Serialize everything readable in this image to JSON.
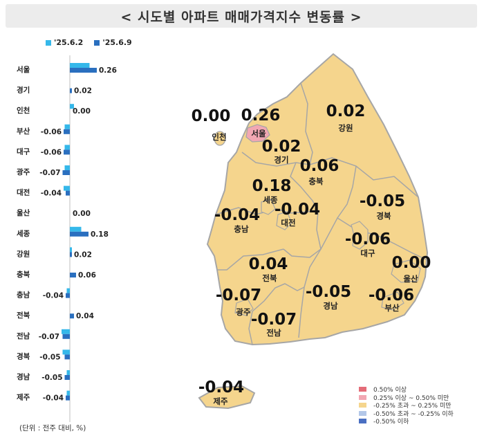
{
  "title": "< 시도별 아파트 매매가격지수 변동률 >",
  "unit_note": "(단위 : 전주 대비, %)",
  "colors": {
    "prev": "#35b8ea",
    "curr": "#2a6fbf",
    "map_fill": "#f5d58d",
    "map_stroke": "#a6a6a6",
    "seoul_fill": "#f2a7b3"
  },
  "chart_data": [
    {
      "type": "bar",
      "orientation": "horizontal",
      "series": [
        {
          "name": "'25.6.2",
          "values": [
            0.19,
            0.0,
            0.04,
            -0.05,
            -0.05,
            -0.05,
            -0.06,
            0.0,
            0.11,
            0.02,
            0.0,
            -0.03,
            0.0,
            -0.08,
            -0.07,
            -0.03,
            -0.03
          ]
        },
        {
          "name": "'25.6.9",
          "values": [
            0.26,
            0.02,
            0.0,
            -0.06,
            -0.06,
            -0.07,
            -0.04,
            0.0,
            0.18,
            0.02,
            0.06,
            -0.04,
            0.04,
            -0.07,
            -0.05,
            -0.05,
            -0.04
          ]
        }
      ],
      "categories": [
        "서울",
        "경기",
        "인천",
        "부산",
        "대구",
        "광주",
        "대전",
        "울산",
        "세종",
        "강원",
        "충북",
        "충남",
        "전북",
        "전남",
        "경북",
        "경남",
        "제주"
      ],
      "data_labels": [
        "0.26",
        "0.02",
        "0.00",
        "-0.06",
        "-0.06",
        "-0.07",
        "-0.04",
        "0.00",
        "0.18",
        "0.02",
        "0.06",
        "-0.04",
        "0.04",
        "-0.07",
        "-0.05",
        "-0.05",
        "-0.04"
      ]
    },
    {
      "type": "map",
      "regions": [
        {
          "name": "인천",
          "value": "0.00",
          "category": "-0.25% 초과 ~ 0.25% 미만"
        },
        {
          "name": "서울",
          "value": "0.26",
          "category": "0.25% 이상 ~ 0.50% 미만"
        },
        {
          "name": "강원",
          "value": "0.02",
          "category": "-0.25% 초과 ~ 0.25% 미만"
        },
        {
          "name": "경기",
          "value": "0.02",
          "category": "-0.25% 초과 ~ 0.25% 미만"
        },
        {
          "name": "충북",
          "value": "0.06",
          "category": "-0.25% 초과 ~ 0.25% 미만"
        },
        {
          "name": "세종",
          "value": "0.18",
          "category": "-0.25% 초과 ~ 0.25% 미만"
        },
        {
          "name": "경북",
          "value": "-0.05",
          "category": "-0.25% 초과 ~ 0.25% 미만"
        },
        {
          "name": "충남",
          "value": "-0.04",
          "category": "-0.25% 초과 ~ 0.25% 미만"
        },
        {
          "name": "대전",
          "value": "-0.04",
          "category": "-0.25% 초과 ~ 0.25% 미만"
        },
        {
          "name": "대구",
          "value": "-0.06",
          "category": "-0.25% 초과 ~ 0.25% 미만"
        },
        {
          "name": "전북",
          "value": "0.04",
          "category": "-0.25% 초과 ~ 0.25% 미만"
        },
        {
          "name": "울산",
          "value": "0.00",
          "category": "-0.25% 초과 ~ 0.25% 미만"
        },
        {
          "name": "광주",
          "value": "-0.07",
          "category": "-0.25% 초과 ~ 0.25% 미만"
        },
        {
          "name": "경남",
          "value": "-0.05",
          "category": "-0.25% 초과 ~ 0.25% 미만"
        },
        {
          "name": "부산",
          "value": "-0.06",
          "category": "-0.25% 초과 ~ 0.25% 미만"
        },
        {
          "name": "전남",
          "value": "-0.07",
          "category": "-0.25% 초과 ~ 0.25% 미만"
        },
        {
          "name": "제주",
          "value": "-0.04",
          "category": "-0.25% 초과 ~ 0.25% 미만"
        }
      ],
      "legend": [
        {
          "label": "0.50% 이상",
          "color": "#e46c78"
        },
        {
          "label": "0.25% 이상 ~ 0.50% 미만",
          "color": "#f2a7b3"
        },
        {
          "label": "-0.25% 초과 ~ 0.25% 미만",
          "color": "#f5d58d"
        },
        {
          "label": "-0.50% 초과 ~ -0.25% 이하",
          "color": "#b3c7e8"
        },
        {
          "label": "-0.50% 이하",
          "color": "#4a6fc2"
        }
      ]
    }
  ]
}
